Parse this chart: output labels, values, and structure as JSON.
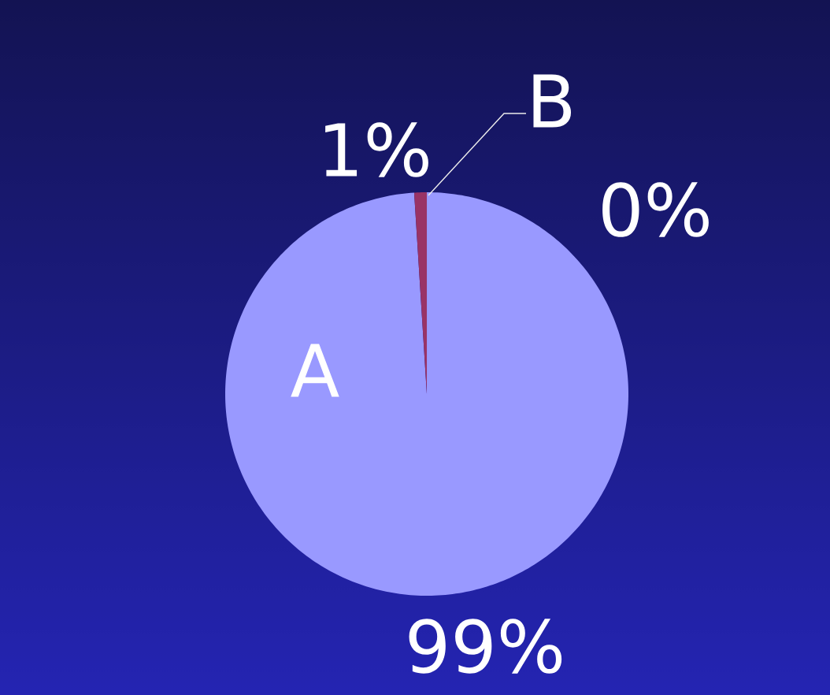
{
  "chart_data": {
    "type": "pie",
    "categories": [
      "A",
      "B",
      null
    ],
    "values": [
      99,
      1,
      0
    ],
    "colors": [
      "#9999ff",
      "#993366",
      null
    ],
    "value_labels": [
      "99%",
      "1%",
      "0%"
    ]
  }
}
